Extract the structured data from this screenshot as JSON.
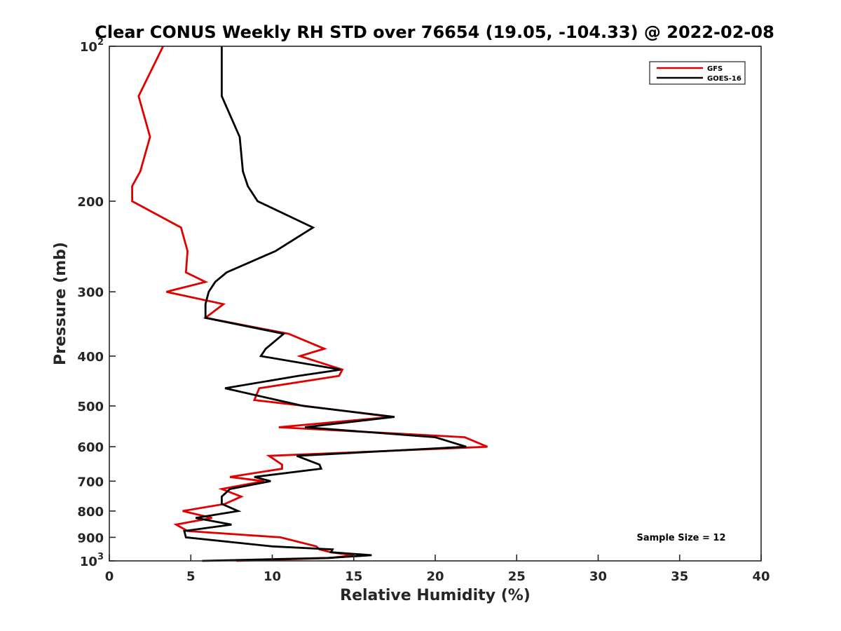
{
  "chart_data": {
    "type": "line",
    "title": "Clear CONUS Weekly RH STD over 76654 (19.05, -104.33) @ 2022-02-08",
    "xlabel": "Relative Humidity (%)",
    "ylabel": "Pressure (mb)",
    "xlim": [
      0,
      40
    ],
    "ylim": [
      100,
      1000
    ],
    "yscale": "log",
    "y_reversed": true,
    "x_ticks": [
      0,
      5,
      10,
      15,
      20,
      25,
      30,
      35,
      40
    ],
    "x_tick_labels": [
      "0",
      "5",
      "10",
      "15",
      "20",
      "25",
      "30",
      "35",
      "40"
    ],
    "y_ticks": [
      100,
      200,
      300,
      400,
      500,
      600,
      700,
      800,
      900,
      1000
    ],
    "y_tick_labels": [
      {
        "base": "10",
        "exp": "2"
      },
      {
        "base": "200",
        "exp": ""
      },
      {
        "base": "300",
        "exp": ""
      },
      {
        "base": "400",
        "exp": ""
      },
      {
        "base": "500",
        "exp": ""
      },
      {
        "base": "600",
        "exp": ""
      },
      {
        "base": "700",
        "exp": ""
      },
      {
        "base": "800",
        "exp": ""
      },
      {
        "base": "900",
        "exp": ""
      },
      {
        "base": "10",
        "exp": "3"
      }
    ],
    "legend_position": "top-right",
    "annotation": "Sample Size = 12",
    "series": [
      {
        "name": "GFS",
        "color": "#e00000",
        "points": [
          [
            3.3,
            100
          ],
          [
            1.8,
            125
          ],
          [
            2.5,
            150
          ],
          [
            1.9,
            175
          ],
          [
            1.4,
            187
          ],
          [
            1.4,
            200
          ],
          [
            4.4,
            225
          ],
          [
            4.8,
            250
          ],
          [
            4.7,
            275
          ],
          [
            5.9,
            287
          ],
          [
            3.5,
            300
          ],
          [
            7.0,
            317
          ],
          [
            5.9,
            337
          ],
          [
            11.0,
            362
          ],
          [
            13.2,
            387
          ],
          [
            11.7,
            400
          ],
          [
            14.3,
            425
          ],
          [
            14.1,
            437
          ],
          [
            9.2,
            462
          ],
          [
            8.9,
            487
          ],
          [
            12.0,
            500
          ],
          [
            17.3,
            525
          ],
          [
            10.4,
            550
          ],
          [
            21.8,
            575
          ],
          [
            23.2,
            600
          ],
          [
            9.8,
            625
          ],
          [
            10.6,
            650
          ],
          [
            10.6,
            662
          ],
          [
            7.4,
            687
          ],
          [
            9.5,
            700
          ],
          [
            6.9,
            725
          ],
          [
            8.1,
            750
          ],
          [
            7.1,
            775
          ],
          [
            4.5,
            800
          ],
          [
            6.3,
            825
          ],
          [
            4.1,
            850
          ],
          [
            4.8,
            875
          ],
          [
            10.5,
            900
          ],
          [
            12.7,
            937
          ],
          [
            12.9,
            950
          ],
          [
            13.6,
            962
          ],
          [
            15.0,
            975
          ],
          [
            13.6,
            987
          ],
          [
            7.8,
            1000
          ]
        ]
      },
      {
        "name": "GOES-16",
        "color": "#000000",
        "points": [
          [
            6.9,
            100
          ],
          [
            6.9,
            125
          ],
          [
            8.0,
            150
          ],
          [
            8.2,
            175
          ],
          [
            8.5,
            187
          ],
          [
            9.1,
            200
          ],
          [
            12.5,
            225
          ],
          [
            10.2,
            250
          ],
          [
            7.2,
            275
          ],
          [
            6.5,
            287
          ],
          [
            6.1,
            300
          ],
          [
            5.9,
            317
          ],
          [
            5.9,
            337
          ],
          [
            10.7,
            362
          ],
          [
            9.6,
            387
          ],
          [
            9.3,
            400
          ],
          [
            14.2,
            425
          ],
          [
            11.6,
            437
          ],
          [
            7.1,
            462
          ],
          [
            10.3,
            487
          ],
          [
            11.9,
            500
          ],
          [
            17.5,
            525
          ],
          [
            12.0,
            550
          ],
          [
            20.0,
            575
          ],
          [
            21.9,
            600
          ],
          [
            11.5,
            625
          ],
          [
            12.9,
            650
          ],
          [
            13.0,
            662
          ],
          [
            8.9,
            687
          ],
          [
            9.9,
            700
          ],
          [
            7.4,
            725
          ],
          [
            6.9,
            750
          ],
          [
            6.9,
            775
          ],
          [
            7.9,
            800
          ],
          [
            5.3,
            825
          ],
          [
            7.5,
            850
          ],
          [
            4.6,
            875
          ],
          [
            4.7,
            900
          ],
          [
            10.0,
            937
          ],
          [
            13.7,
            950
          ],
          [
            13.6,
            962
          ],
          [
            16.1,
            975
          ],
          [
            13.4,
            987
          ],
          [
            5.7,
            1000
          ]
        ]
      }
    ]
  }
}
